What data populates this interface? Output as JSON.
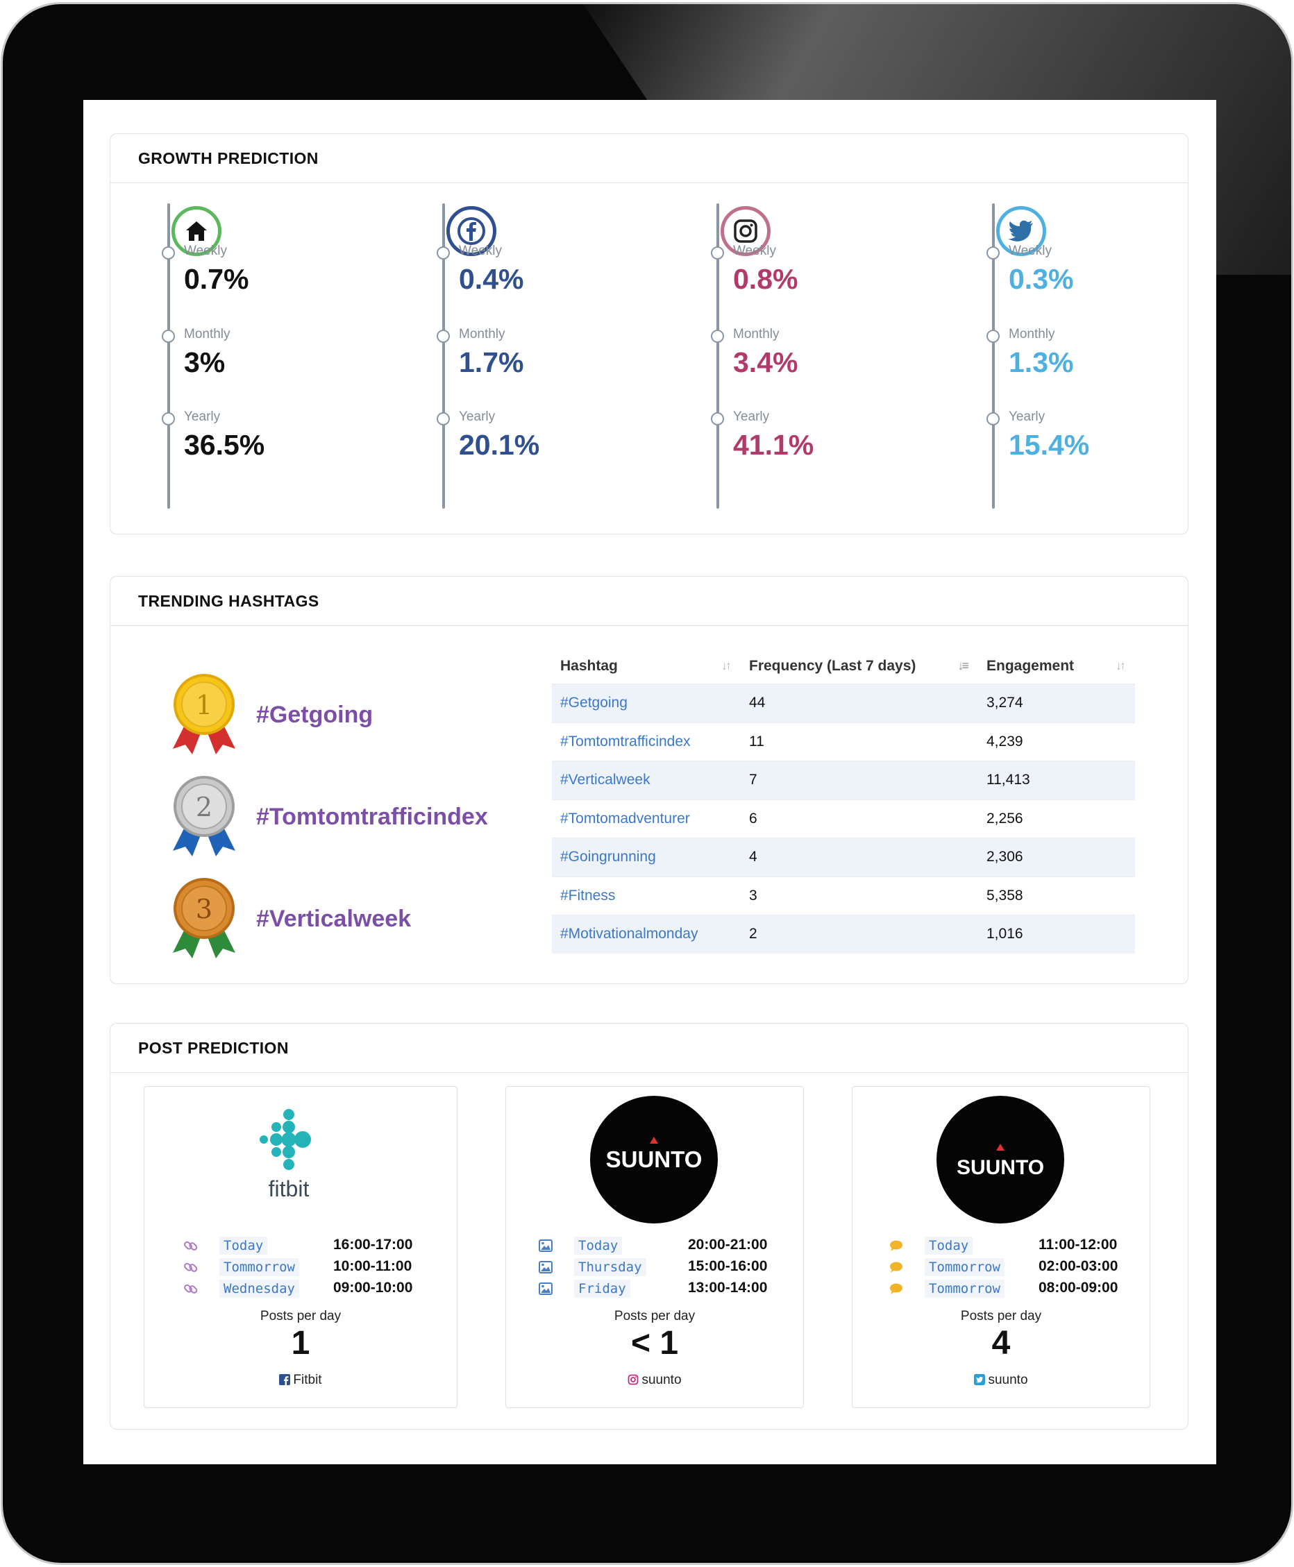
{
  "growth": {
    "title": "GROWTH PREDICTION",
    "columns": [
      {
        "icon": "home-icon",
        "color": "#111111",
        "ring": "#5cb85c",
        "weekly_label": "Weekly",
        "weekly": "0.7%",
        "monthly_label": "Monthly",
        "monthly": "3%",
        "yearly_label": "Yearly",
        "yearly": "36.5%"
      },
      {
        "icon": "facebook-icon",
        "color": "#2f4f8f",
        "ring": "#2f4f8f",
        "weekly_label": "Weekly",
        "weekly": "0.4%",
        "monthly_label": "Monthly",
        "monthly": "1.7%",
        "yearly_label": "Yearly",
        "yearly": "20.1%"
      },
      {
        "icon": "instagram-icon",
        "color": "#b23a6a",
        "ring": "#c0708c",
        "weekly_label": "Weekly",
        "weekly": "0.8%",
        "monthly_label": "Monthly",
        "monthly": "3.4%",
        "yearly_label": "Yearly",
        "yearly": "41.1%"
      },
      {
        "icon": "twitter-icon",
        "color": "#4eb0e0",
        "ring": "#4eb0e0",
        "weekly_label": "Weekly",
        "weekly": "0.3%",
        "monthly_label": "Monthly",
        "monthly": "1.3%",
        "yearly_label": "Yearly",
        "yearly": "15.4%"
      }
    ]
  },
  "hashtags": {
    "title": "TRENDING HASHTAGS",
    "top3": [
      {
        "rank": "1",
        "tag": "#Getgoing"
      },
      {
        "rank": "2",
        "tag": "#Tomtomtrafficindex"
      },
      {
        "rank": "3",
        "tag": "#Verticalweek"
      }
    ],
    "columns": [
      "Hashtag",
      "Frequency (Last 7 days)",
      "Engagement"
    ],
    "rows": [
      [
        "#Getgoing",
        "44",
        "3,274"
      ],
      [
        "#Tomtomtrafficindex",
        "11",
        "4,239"
      ],
      [
        "#Verticalweek",
        "7",
        "11,413"
      ],
      [
        "#Tomtomadventurer",
        "6",
        "2,256"
      ],
      [
        "#Goingrunning",
        "4",
        "2,306"
      ],
      [
        "#Fitness",
        "3",
        "5,358"
      ],
      [
        "#Motivationalmonday",
        "2",
        "1,016"
      ]
    ]
  },
  "posts": {
    "title": "POST PREDICTION",
    "cards": [
      {
        "brand": "fitbit",
        "row_icon": "link-icon",
        "rows": [
          {
            "day": "Today",
            "time": "16:00-17:00"
          },
          {
            "day": "Tommorrow",
            "time": "10:00-11:00"
          },
          {
            "day": "Wednesday",
            "time": "09:00-10:00"
          }
        ],
        "posts_label": "Posts per day",
        "posts_value": "1",
        "account_icon": "facebook-icon",
        "account": "Fitbit"
      },
      {
        "brand": "SUUNTO",
        "row_icon": "image-icon",
        "rows": [
          {
            "day": "Today",
            "time": "20:00-21:00"
          },
          {
            "day": "Thursday",
            "time": "15:00-16:00"
          },
          {
            "day": "Friday",
            "time": "13:00-14:00"
          }
        ],
        "posts_label": "Posts per day",
        "posts_value": "< 1",
        "account_icon": "instagram-icon",
        "account": "suunto"
      },
      {
        "brand": "SUUNTO",
        "row_icon": "comment-icon",
        "rows": [
          {
            "day": "Today",
            "time": "11:00-12:00"
          },
          {
            "day": "Tommorrow",
            "time": "02:00-03:00"
          },
          {
            "day": "Tommorrow",
            "time": "08:00-09:00"
          }
        ],
        "posts_label": "Posts per day",
        "posts_value": "4",
        "account_icon": "twitter-icon",
        "account": "suunto"
      }
    ]
  }
}
